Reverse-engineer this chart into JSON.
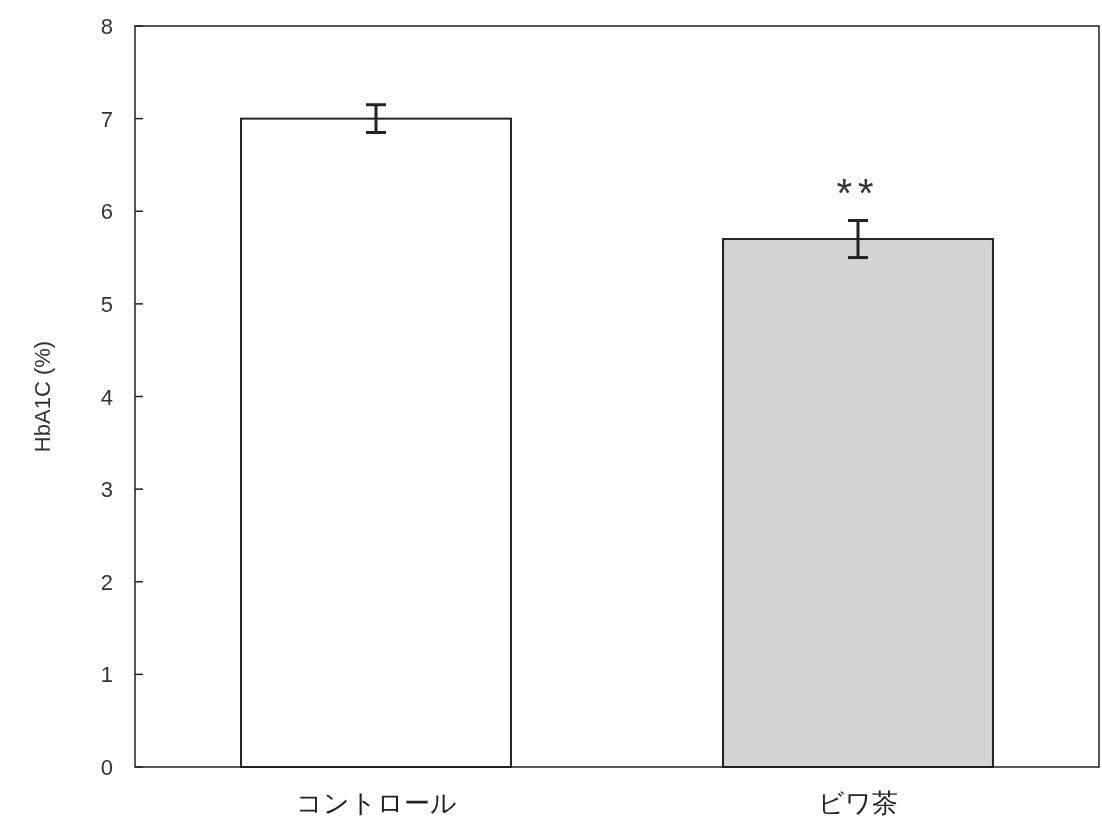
{
  "chart_data": {
    "type": "bar",
    "ylabel": "HbA1C (%)",
    "categories": [
      "コントロール",
      "ビワ茶"
    ],
    "values": [
      7.0,
      5.7
    ],
    "colors": [
      "#ffffff",
      "#d4d4d4"
    ],
    "errors": [
      0.15,
      0.2
    ],
    "ylim": [
      0,
      8
    ],
    "yticks": [
      0,
      1,
      2,
      3,
      4,
      5,
      6,
      7,
      8
    ],
    "annotations": [
      {
        "text": "**",
        "x": "ビワ茶",
        "y": 5.9
      }
    ]
  }
}
